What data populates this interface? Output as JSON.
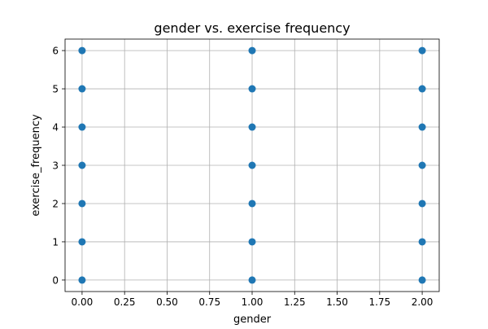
{
  "chart_data": {
    "type": "scatter",
    "title": "gender vs. exercise frequency",
    "xlabel": "gender",
    "ylabel": "exercise_frequency",
    "xlim": [
      -0.1,
      2.1
    ],
    "ylim": [
      -0.3,
      6.3
    ],
    "x_ticks": [
      0.0,
      0.25,
      0.5,
      0.75,
      1.0,
      1.25,
      1.5,
      1.75,
      2.0
    ],
    "x_tick_labels": [
      "0.00",
      "0.25",
      "0.50",
      "0.75",
      "1.00",
      "1.25",
      "1.50",
      "1.75",
      "2.00"
    ],
    "y_ticks": [
      0,
      1,
      2,
      3,
      4,
      5,
      6
    ],
    "y_tick_labels": [
      "0",
      "1",
      "2",
      "3",
      "4",
      "5",
      "6"
    ],
    "grid": true,
    "series": [
      {
        "color": "#1f77b4",
        "points": [
          {
            "x": 0,
            "y": 0
          },
          {
            "x": 0,
            "y": 1
          },
          {
            "x": 0,
            "y": 2
          },
          {
            "x": 0,
            "y": 3
          },
          {
            "x": 0,
            "y": 4
          },
          {
            "x": 0,
            "y": 5
          },
          {
            "x": 0,
            "y": 6
          },
          {
            "x": 1,
            "y": 0
          },
          {
            "x": 1,
            "y": 1
          },
          {
            "x": 1,
            "y": 2
          },
          {
            "x": 1,
            "y": 3
          },
          {
            "x": 1,
            "y": 4
          },
          {
            "x": 1,
            "y": 5
          },
          {
            "x": 1,
            "y": 6
          },
          {
            "x": 2,
            "y": 0
          },
          {
            "x": 2,
            "y": 1
          },
          {
            "x": 2,
            "y": 2
          },
          {
            "x": 2,
            "y": 3
          },
          {
            "x": 2,
            "y": 4
          },
          {
            "x": 2,
            "y": 5
          },
          {
            "x": 2,
            "y": 6
          }
        ]
      }
    ]
  }
}
